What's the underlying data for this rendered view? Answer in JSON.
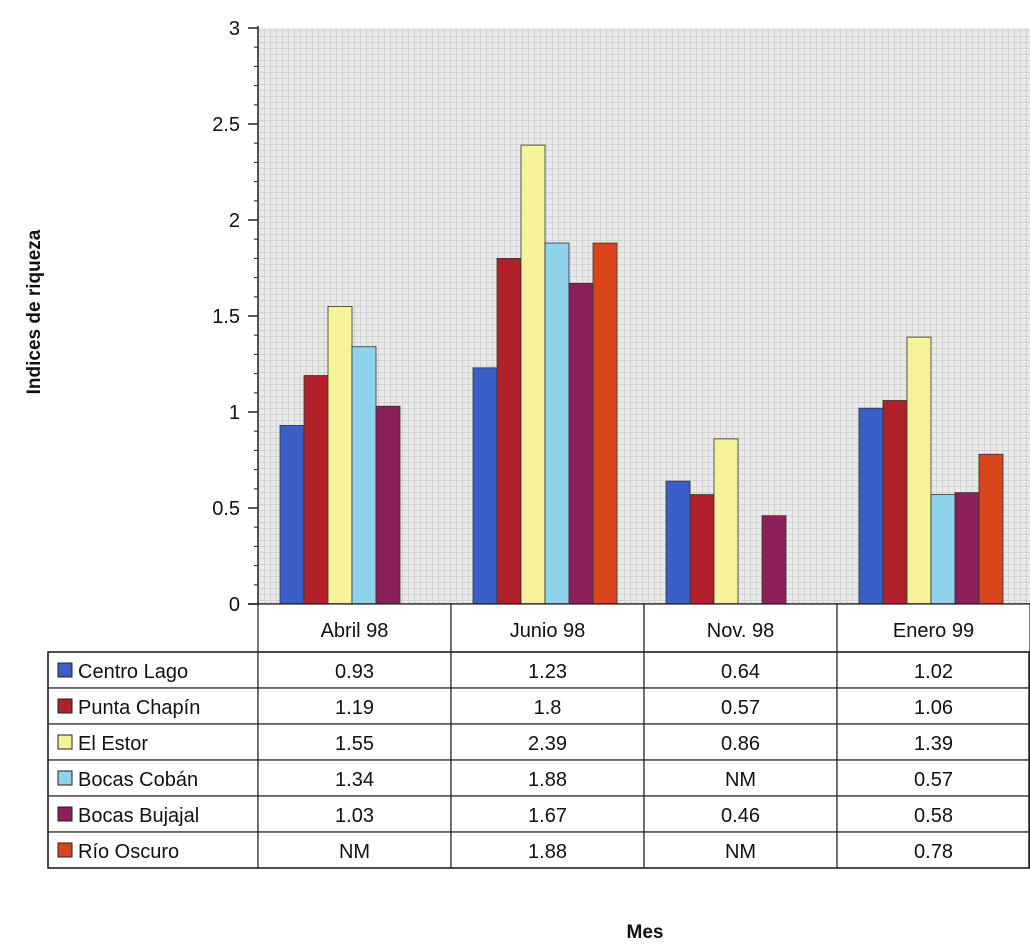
{
  "chart_data": {
    "type": "bar",
    "title": "",
    "xlabel": "Mes",
    "ylabel": "Indices de riqueza",
    "ylim": [
      0,
      3
    ],
    "yticks": [
      "0",
      "0.5",
      "1",
      "1.5",
      "2",
      "2.5",
      "3"
    ],
    "grid": true,
    "legend": "data-table-left",
    "categories": [
      "Abril 98",
      "Junio 98",
      "Nov. 98",
      "Enero 99"
    ],
    "series": [
      {
        "name": "Centro Lago",
        "color": "#3a5fc8",
        "values": [
          0.93,
          1.23,
          0.64,
          1.02
        ],
        "labels": [
          "0.93",
          "1.23",
          "0.64",
          "1.02"
        ]
      },
      {
        "name": "Punta Chapín",
        "color": "#b0202a",
        "values": [
          1.19,
          1.8,
          0.57,
          1.06
        ],
        "labels": [
          "1.19",
          "1.8",
          "0.57",
          "1.06"
        ]
      },
      {
        "name": "El Estor",
        "color": "#f6f29a",
        "values": [
          1.55,
          2.39,
          0.86,
          1.39
        ],
        "labels": [
          "1.55",
          "2.39",
          "0.86",
          "1.39"
        ]
      },
      {
        "name": "Bocas Cobán",
        "color": "#8fd2ec",
        "values": [
          1.34,
          1.88,
          null,
          0.57
        ],
        "labels": [
          "1.34",
          "1.88",
          "NM",
          "0.57"
        ]
      },
      {
        "name": "Bocas Bujajal",
        "color": "#8c1f5a",
        "values": [
          1.03,
          1.67,
          0.46,
          0.58
        ],
        "labels": [
          "1.03",
          "1.67",
          "0.46",
          "0.58"
        ]
      },
      {
        "name": "Río Oscuro",
        "color": "#d9451a",
        "values": [
          null,
          1.88,
          null,
          0.78
        ],
        "labels": [
          "NM",
          "1.88",
          "NM",
          "0.78"
        ]
      }
    ]
  }
}
